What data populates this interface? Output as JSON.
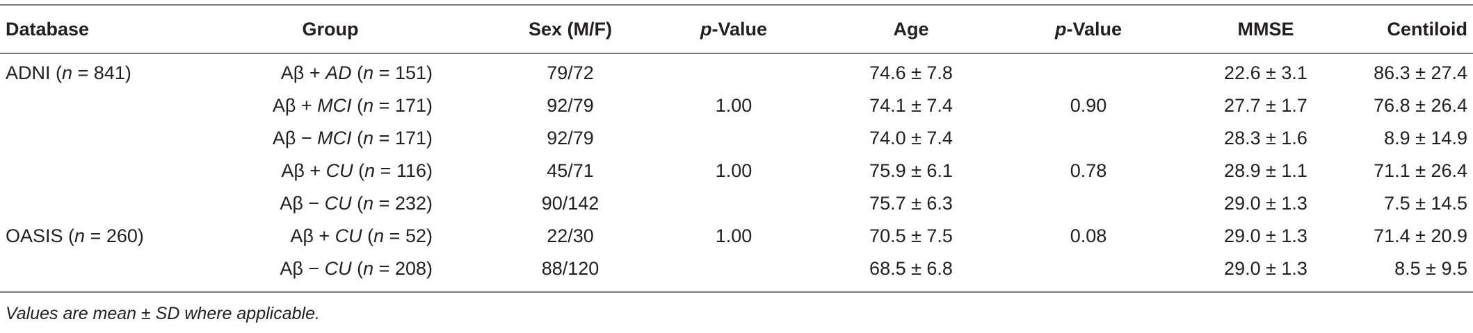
{
  "headers": {
    "database": "Database",
    "group": "Group",
    "sex": "Sex (M/F)",
    "p1_italic": "p",
    "p1_rest": "-Value",
    "age": "Age",
    "p2_italic": "p",
    "p2_rest": "-Value",
    "mmse": "MMSE",
    "centiloid": "Centiloid"
  },
  "databases": {
    "adni": {
      "name": "ADNI (",
      "n_label": "n",
      "n_value": " = 841)"
    },
    "oasis": {
      "name": "OASIS (",
      "n_label": "n",
      "n_value": " = 260)"
    }
  },
  "rows": [
    {
      "grp_prefix": "Aβ + ",
      "grp_name": "AD",
      "grp_n": "151",
      "sex": "79/72",
      "p1": "",
      "age": "74.6 ± 7.8",
      "p2": "",
      "mmse": "22.6 ± 3.1",
      "centiloid": "86.3 ± 27.4"
    },
    {
      "grp_prefix": "Aβ + ",
      "grp_name": "MCI",
      "grp_n": "171",
      "sex": "92/79",
      "p1": "1.00",
      "age": "74.1 ± 7.4",
      "p2": "0.90",
      "mmse": "27.7 ± 1.7",
      "centiloid": "76.8 ± 26.4"
    },
    {
      "grp_prefix": "Aβ − ",
      "grp_name": "MCI",
      "grp_n": "171",
      "sex": "92/79",
      "p1": "",
      "age": "74.0 ± 7.4",
      "p2": "",
      "mmse": "28.3 ± 1.6",
      "centiloid": "8.9 ± 14.9"
    },
    {
      "grp_prefix": "Aβ + ",
      "grp_name": "CU",
      "grp_n": "116",
      "sex": "45/71",
      "p1": "1.00",
      "age": "75.9 ± 6.1",
      "p2": "0.78",
      "mmse": "28.9 ± 1.1",
      "centiloid": "71.1 ± 26.4"
    },
    {
      "grp_prefix": "Aβ − ",
      "grp_name": "CU",
      "grp_n": "232",
      "sex": "90/142",
      "p1": "",
      "age": "75.7 ± 6.3",
      "p2": "",
      "mmse": "29.0 ± 1.3",
      "centiloid": "7.5 ± 14.5"
    },
    {
      "grp_prefix": "Aβ + ",
      "grp_name": "CU",
      "grp_n": "52",
      "sex": "22/30",
      "p1": "1.00",
      "age": "70.5 ± 7.5",
      "p2": "0.08",
      "mmse": "29.0 ± 1.3",
      "centiloid": "71.4 ± 20.9"
    },
    {
      "grp_prefix": "Aβ − ",
      "grp_name": "CU",
      "grp_n": "208",
      "sex": "88/120",
      "p1": "",
      "age": "68.5 ± 6.8",
      "p2": "",
      "mmse": "29.0 ± 1.3",
      "centiloid": "8.5 ± 9.5"
    }
  ],
  "n_symbol": "n",
  "equals": " = ",
  "open_paren": " (",
  "close_paren": ")",
  "footnote": "Values are mean ± SD where applicable."
}
